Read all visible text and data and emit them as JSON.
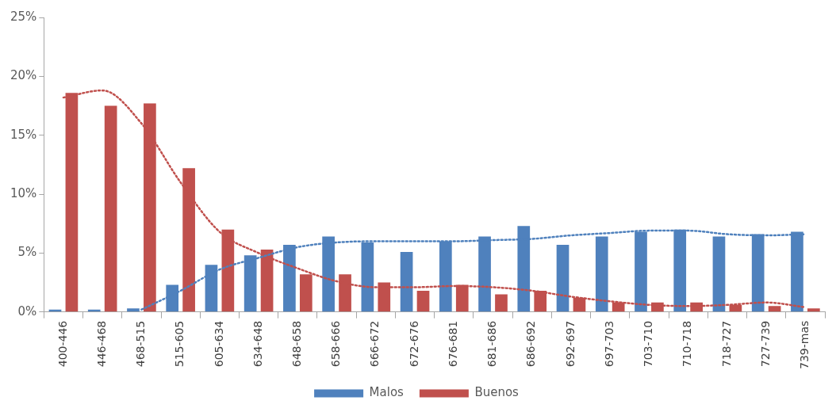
{
  "chart_data": {
    "type": "bar",
    "categories": [
      "400-446",
      "446-468",
      "468-515",
      "515-605",
      "605-634",
      "634-648",
      "648-658",
      "658-666",
      "666-672",
      "672-676",
      "676-681",
      "681-686",
      "686-692",
      "692-697",
      "697-703",
      "703-710",
      "710-718",
      "718-727",
      "727-739",
      "739-mas"
    ],
    "series": [
      {
        "name": "Malos",
        "color": "#4f81bd",
        "values": [
          0.2,
          0.2,
          0.3,
          2.3,
          4.0,
          4.8,
          5.7,
          6.4,
          5.9,
          5.1,
          6.0,
          6.4,
          7.3,
          5.7,
          6.4,
          6.8,
          7.0,
          6.4,
          6.6,
          6.8
        ]
      },
      {
        "name": "Buenos",
        "color": "#c0504d",
        "values": [
          18.6,
          17.5,
          17.7,
          12.2,
          7.0,
          5.3,
          3.2,
          3.2,
          2.5,
          1.8,
          2.3,
          1.5,
          1.8,
          1.2,
          0.8,
          0.8,
          0.8,
          0.6,
          0.5,
          0.3
        ]
      },
      {
        "type": "line",
        "color": "#4f81bd",
        "line_style": "dotted",
        "x": [
          "400-446",
          "446-468",
          "468-515",
          "515-605",
          "605-634",
          "634-648",
          "648-658",
          "658-666",
          "666-672",
          "672-676",
          "676-681",
          "681-686",
          "686-692",
          "692-697",
          "697-703",
          "703-710",
          "710-718",
          "718-727",
          "727-739",
          "739-mas"
        ],
        "values": [
          null,
          null,
          0.2,
          1.8,
          3.6,
          4.6,
          5.5,
          5.9,
          6.0,
          6.0,
          6.0,
          6.1,
          6.2,
          6.5,
          6.7,
          6.9,
          6.9,
          6.6,
          6.5,
          6.6
        ]
      },
      {
        "type": "line",
        "color": "#c0504d",
        "line_style": "dotted",
        "x": [
          "400-446",
          "446-468",
          "468-515",
          "515-605",
          "605-634",
          "634-648",
          "648-658",
          "658-666",
          "666-672",
          "672-676",
          "676-681",
          "681-686",
          "686-692",
          "692-697",
          "697-703",
          "703-710",
          "710-718",
          "718-727",
          "727-739",
          "739-mas"
        ],
        "values": [
          18.2,
          18.8,
          16.0,
          11.0,
          6.8,
          5.0,
          3.7,
          2.6,
          2.1,
          2.1,
          2.2,
          2.1,
          1.8,
          1.3,
          0.9,
          0.6,
          0.5,
          0.6,
          0.8,
          0.4
        ]
      }
    ],
    "ylim": [
      0,
      25
    ],
    "yticks": [
      {
        "value": 0,
        "label": "0%"
      },
      {
        "value": 5,
        "label": "5%"
      },
      {
        "value": 10,
        "label": "10%"
      },
      {
        "value": 15,
        "label": "15%"
      },
      {
        "value": 20,
        "label": "20%"
      },
      {
        "value": 25,
        "label": "25%"
      }
    ],
    "legend": "bottom",
    "grid": false,
    "marker": "none"
  }
}
